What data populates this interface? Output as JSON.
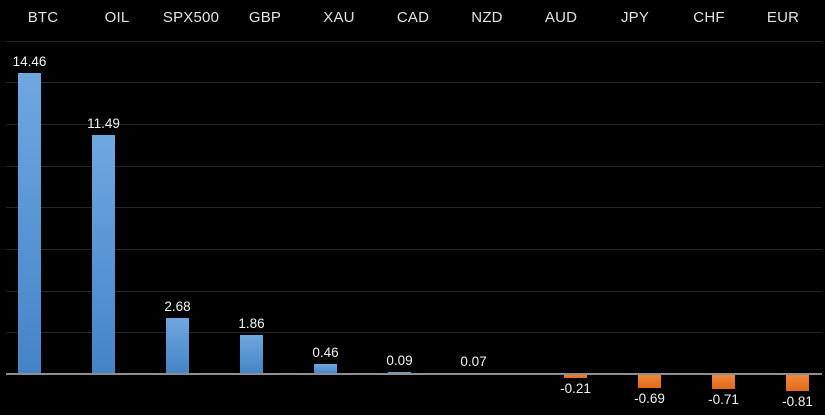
{
  "colors": {
    "background": "#000000",
    "grid": "#262626",
    "axis": "#8f8f8f",
    "header_text": "#e3e3e3",
    "value_text": "#f2f2f2",
    "bar_positive_top": "#70a7e0",
    "bar_positive_bottom": "#4384c8",
    "bar_negative_top": "#f18a3c",
    "bar_negative_bottom": "#e2691a"
  },
  "chart_data": {
    "type": "bar",
    "title": "",
    "xlabel": "",
    "ylabel": "",
    "categories": [
      "BTC",
      "OIL",
      "SPX500",
      "GBP",
      "XAU",
      "CAD",
      "NZD",
      "AUD",
      "JPY",
      "CHF",
      "EUR"
    ],
    "values": [
      14.46,
      11.49,
      2.68,
      1.86,
      0.46,
      0.09,
      0.07,
      -0.21,
      -0.69,
      -0.71,
      -0.81
    ],
    "value_labels": [
      "14.46",
      "11.49",
      "2.68",
      "1.86",
      "0.46",
      "0.09",
      "0.07",
      "-0.21",
      "-0.69",
      "-0.71",
      "-0.81"
    ],
    "ylim": [
      -2,
      16
    ],
    "grid_interval": 2,
    "grid": true,
    "legend": false,
    "y_tick_labels_visible": false,
    "category_labels_position": "top",
    "value_label_position": "outside-end",
    "positive_color": "blue-gradient",
    "negative_color": "orange-gradient"
  }
}
